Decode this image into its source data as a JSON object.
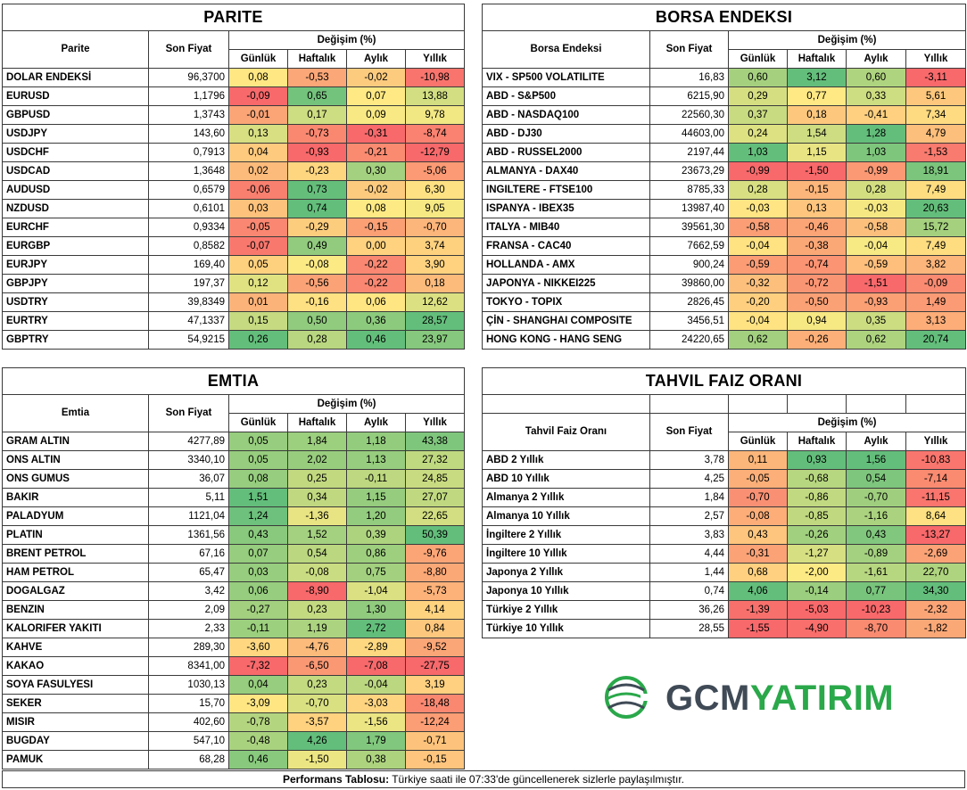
{
  "parite": {
    "title": "PARITE",
    "col_name": "Parite",
    "col_price": "Son Fiyat",
    "col_change": "Değişim (%)",
    "col_daily": "Günlük",
    "col_weekly": "Haftalık",
    "col_monthly": "Aylık",
    "col_yearly": "Yıllık",
    "rows": [
      {
        "name": "DOLAR ENDEKSİ",
        "price": "96,3700",
        "d": "0,08",
        "w": "-0,53",
        "m": "-0,02",
        "y": "-10,98"
      },
      {
        "name": "EURUSD",
        "price": "1,1796",
        "d": "-0,09",
        "w": "0,65",
        "m": "0,07",
        "y": "13,88"
      },
      {
        "name": "GBPUSD",
        "price": "1,3743",
        "d": "-0,01",
        "w": "0,17",
        "m": "0,09",
        "y": "9,78"
      },
      {
        "name": "USDJPY",
        "price": "143,60",
        "d": "0,13",
        "w": "-0,73",
        "m": "-0,31",
        "y": "-8,74"
      },
      {
        "name": "USDCHF",
        "price": "0,7913",
        "d": "0,04",
        "w": "-0,93",
        "m": "-0,21",
        "y": "-12,79"
      },
      {
        "name": "USDCAD",
        "price": "1,3648",
        "d": "0,02",
        "w": "-0,23",
        "m": "0,30",
        "y": "-5,06"
      },
      {
        "name": "AUDUSD",
        "price": "0,6579",
        "d": "-0,06",
        "w": "0,73",
        "m": "-0,02",
        "y": "6,30"
      },
      {
        "name": "NZDUSD",
        "price": "0,6101",
        "d": "0,03",
        "w": "0,74",
        "m": "0,08",
        "y": "9,05"
      },
      {
        "name": "EURCHF",
        "price": "0,9334",
        "d": "-0,05",
        "w": "-0,29",
        "m": "-0,15",
        "y": "-0,70"
      },
      {
        "name": "EURGBP",
        "price": "0,8582",
        "d": "-0,07",
        "w": "0,49",
        "m": "0,00",
        "y": "3,74"
      },
      {
        "name": "EURJPY",
        "price": "169,40",
        "d": "0,05",
        "w": "-0,08",
        "m": "-0,22",
        "y": "3,90"
      },
      {
        "name": "GBPJPY",
        "price": "197,37",
        "d": "0,12",
        "w": "-0,56",
        "m": "-0,22",
        "y": "0,18"
      },
      {
        "name": "USDTRY",
        "price": "39,8349",
        "d": "0,01",
        "w": "-0,16",
        "m": "0,06",
        "y": "12,62"
      },
      {
        "name": "EURTRY",
        "price": "47,1337",
        "d": "0,15",
        "w": "0,50",
        "m": "0,36",
        "y": "28,57"
      },
      {
        "name": "GBPTRY",
        "price": "54,9215",
        "d": "0,26",
        "w": "0,28",
        "m": "0,46",
        "y": "23,97"
      }
    ]
  },
  "borsa": {
    "title": "BORSA ENDEKSI",
    "col_name": "Borsa Endeksi",
    "col_price": "Son Fiyat",
    "col_change": "Değişim (%)",
    "col_daily": "Günlük",
    "col_weekly": "Haftalık",
    "col_monthly": "Aylık",
    "col_yearly": "Yıllık",
    "rows": [
      {
        "name": "VIX  - SP500 VOLATILITE",
        "price": "16,83",
        "d": "0,60",
        "w": "3,12",
        "m": "0,60",
        "y": "-3,11"
      },
      {
        "name": "ABD - S&P500",
        "price": "6215,90",
        "d": "0,29",
        "w": "0,77",
        "m": "0,33",
        "y": "5,61"
      },
      {
        "name": "ABD - NASDAQ100",
        "price": "22560,30",
        "d": "0,37",
        "w": "0,18",
        "m": "-0,41",
        "y": "7,34"
      },
      {
        "name": "ABD - DJ30",
        "price": "44603,00",
        "d": "0,24",
        "w": "1,54",
        "m": "1,28",
        "y": "4,79"
      },
      {
        "name": "ABD - RUSSEL2000",
        "price": "2197,44",
        "d": "1,03",
        "w": "1,15",
        "m": "1,03",
        "y": "-1,53"
      },
      {
        "name": "ALMANYA - DAX40",
        "price": "23673,29",
        "d": "-0,99",
        "w": "-1,50",
        "m": "-0,99",
        "y": "18,91"
      },
      {
        "name": "INGILTERE - FTSE100",
        "price": "8785,33",
        "d": "0,28",
        "w": "-0,15",
        "m": "0,28",
        "y": "7,49"
      },
      {
        "name": "ISPANYA - IBEX35",
        "price": "13987,40",
        "d": "-0,03",
        "w": "0,13",
        "m": "-0,03",
        "y": "20,63"
      },
      {
        "name": "ITALYA - MIB40",
        "price": "39561,30",
        "d": "-0,58",
        "w": "-0,46",
        "m": "-0,58",
        "y": "15,72"
      },
      {
        "name": "FRANSA - CAC40",
        "price": "7662,59",
        "d": "-0,04",
        "w": "-0,38",
        "m": "-0,04",
        "y": "7,49"
      },
      {
        "name": "HOLLANDA - AMX",
        "price": "900,24",
        "d": "-0,59",
        "w": "-0,74",
        "m": "-0,59",
        "y": "3,82"
      },
      {
        "name": "JAPONYA - NIKKEI225",
        "price": "39860,00",
        "d": "-0,32",
        "w": "-0,72",
        "m": "-1,51",
        "y": "-0,09"
      },
      {
        "name": "TOKYO - TOPIX",
        "price": "2826,45",
        "d": "-0,20",
        "w": "-0,50",
        "m": "-0,93",
        "y": "1,49"
      },
      {
        "name": "ÇİN - SHANGHAI COMPOSITE",
        "price": "3456,51",
        "d": "-0,04",
        "w": "0,94",
        "m": "0,35",
        "y": "3,13"
      },
      {
        "name": "HONG KONG - HANG SENG",
        "price": "24220,65",
        "d": "0,62",
        "w": "-0,26",
        "m": "0,62",
        "y": "20,74"
      }
    ]
  },
  "emtia": {
    "title": "EMTIA",
    "col_name": "Emtia",
    "col_price": "Son Fiyat",
    "col_change": "Değişim (%)",
    "col_daily": "Günlük",
    "col_weekly": "Haftalık",
    "col_monthly": "Aylık",
    "col_yearly": "Yıllık",
    "rows": [
      {
        "name": "GRAM ALTIN",
        "price": "4277,89",
        "d": "0,05",
        "w": "1,84",
        "m": "1,18",
        "y": "43,38"
      },
      {
        "name": "ONS ALTIN",
        "price": "3340,10",
        "d": "0,05",
        "w": "2,02",
        "m": "1,13",
        "y": "27,32"
      },
      {
        "name": "ONS GUMUS",
        "price": "36,07",
        "d": "0,08",
        "w": "0,25",
        "m": "-0,11",
        "y": "24,85"
      },
      {
        "name": "BAKIR",
        "price": "5,11",
        "d": "1,51",
        "w": "0,34",
        "m": "1,15",
        "y": "27,07"
      },
      {
        "name": "PALADYUM",
        "price": "1121,04",
        "d": "1,24",
        "w": "-1,36",
        "m": "1,20",
        "y": "22,65"
      },
      {
        "name": "PLATIN",
        "price": "1361,56",
        "d": "0,43",
        "w": "1,52",
        "m": "0,39",
        "y": "50,39"
      },
      {
        "name": "BRENT PETROL",
        "price": "67,16",
        "d": "0,07",
        "w": "0,54",
        "m": "0,86",
        "y": "-9,76"
      },
      {
        "name": "HAM PETROL",
        "price": "65,47",
        "d": "0,03",
        "w": "-0,08",
        "m": "0,75",
        "y": "-8,80"
      },
      {
        "name": "DOGALGAZ",
        "price": "3,42",
        "d": "0,06",
        "w": "-8,90",
        "m": "-1,04",
        "y": "-5,73"
      },
      {
        "name": "BENZIN",
        "price": "2,09",
        "d": "-0,27",
        "w": "0,23",
        "m": "1,30",
        "y": "4,14"
      },
      {
        "name": "KALORIFER YAKITI",
        "price": "2,33",
        "d": "-0,11",
        "w": "1,19",
        "m": "2,72",
        "y": "0,84"
      },
      {
        "name": "KAHVE",
        "price": "289,30",
        "d": "-3,60",
        "w": "-4,76",
        "m": "-2,89",
        "y": "-9,52"
      },
      {
        "name": "KAKAO",
        "price": "8341,00",
        "d": "-7,32",
        "w": "-6,50",
        "m": "-7,08",
        "y": "-27,75"
      },
      {
        "name": "SOYA FASULYESI",
        "price": "1030,13",
        "d": "0,04",
        "w": "0,23",
        "m": "-0,04",
        "y": "3,19"
      },
      {
        "name": "SEKER",
        "price": "15,70",
        "d": "-3,09",
        "w": "-0,70",
        "m": "-3,03",
        "y": "-18,48"
      },
      {
        "name": "MISIR",
        "price": "402,60",
        "d": "-0,78",
        "w": "-3,57",
        "m": "-1,56",
        "y": "-12,24"
      },
      {
        "name": "BUGDAY",
        "price": "547,10",
        "d": "-0,48",
        "w": "4,26",
        "m": "1,79",
        "y": "-0,71"
      },
      {
        "name": "PAMUK",
        "price": "68,28",
        "d": "0,46",
        "w": "-1,50",
        "m": "0,38",
        "y": "-0,15"
      }
    ]
  },
  "tahvil": {
    "title": "TAHVIL FAIZ ORANI",
    "col_name": "Tahvil Faiz Oranı",
    "col_price": "Son Fiyat",
    "col_change": "Değişim (%)",
    "col_daily": "Günlük",
    "col_weekly": "Haftalık",
    "col_monthly": "Aylık",
    "col_yearly": "Yıllık",
    "rows": [
      {
        "name": "ABD 2 Yıllık",
        "price": "3,78",
        "d": "0,11",
        "w": "0,93",
        "m": "1,56",
        "y": "-10,83"
      },
      {
        "name": "ABD 10 Yıllık",
        "price": "4,25",
        "d": "-0,05",
        "w": "-0,68",
        "m": "0,54",
        "y": "-7,14"
      },
      {
        "name": "Almanya 2 Yıllık",
        "price": "1,84",
        "d": "-0,70",
        "w": "-0,86",
        "m": "-0,70",
        "y": "-11,15"
      },
      {
        "name": "Almanya 10 Yıllık",
        "price": "2,57",
        "d": "-0,08",
        "w": "-0,85",
        "m": "-1,16",
        "y": "8,64"
      },
      {
        "name": "İngiltere 2 Yıllık",
        "price": "3,83",
        "d": "0,43",
        "w": "-0,26",
        "m": "0,43",
        "y": "-13,27"
      },
      {
        "name": "İngiltere 10 Yıllık",
        "price": "4,44",
        "d": "-0,31",
        "w": "-1,27",
        "m": "-0,89",
        "y": "-2,69"
      },
      {
        "name": "Japonya 2 Yıllık",
        "price": "1,44",
        "d": "0,68",
        "w": "-2,00",
        "m": "-1,61",
        "y": "22,70"
      },
      {
        "name": "Japonya 10 Yıllık",
        "price": "0,74",
        "d": "4,06",
        "w": "-0,14",
        "m": "0,77",
        "y": "34,30"
      },
      {
        "name": "Türkiye 2 Yıllık",
        "price": "36,26",
        "d": "-1,39",
        "w": "-5,03",
        "m": "-10,23",
        "y": "-2,32"
      },
      {
        "name": "Türkiye 10 Yıllık",
        "price": "28,55",
        "d": "-1,55",
        "w": "-4,90",
        "m": "-8,70",
        "y": "-1,82"
      }
    ]
  },
  "logo": {
    "part1": "GCM",
    "part2": "YATIRIM"
  },
  "footer": {
    "bold": "Performans Tablosu:",
    "text": " Türkiye saati ile 07:33'de güncellenerek sizlerle paylaşılmıştır."
  },
  "colors": {
    "red": "#f8696b",
    "yellow": "#ffeb84",
    "green": "#63be7b"
  }
}
